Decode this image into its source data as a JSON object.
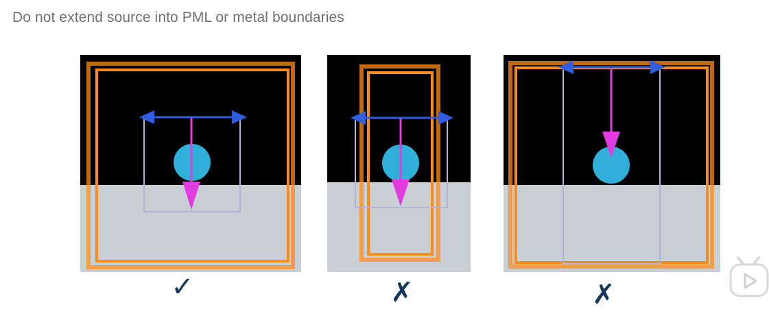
{
  "slide": {
    "title": "Do not extend source into PML or metal boundaries"
  },
  "panels": [
    {
      "id": "correct",
      "verdict_symbol": "✓",
      "verdict": "correct"
    },
    {
      "id": "extends-into-pml",
      "verdict_symbol": "✗",
      "verdict": "incorrect"
    },
    {
      "id": "touches-boundary",
      "verdict_symbol": "✗",
      "verdict": "incorrect"
    }
  ],
  "colors": {
    "upper_region": "#000000",
    "lower_region": "#c8d0d6",
    "boundary": "#ff8c1a",
    "source_box": "#b0b4d6",
    "polarization_arrow": "#2f5fe0",
    "propagation_arrow": "#e23ce0",
    "object": "#2fb0d8",
    "verdict": "#15375a"
  },
  "icons": {
    "play": "play-icon"
  }
}
